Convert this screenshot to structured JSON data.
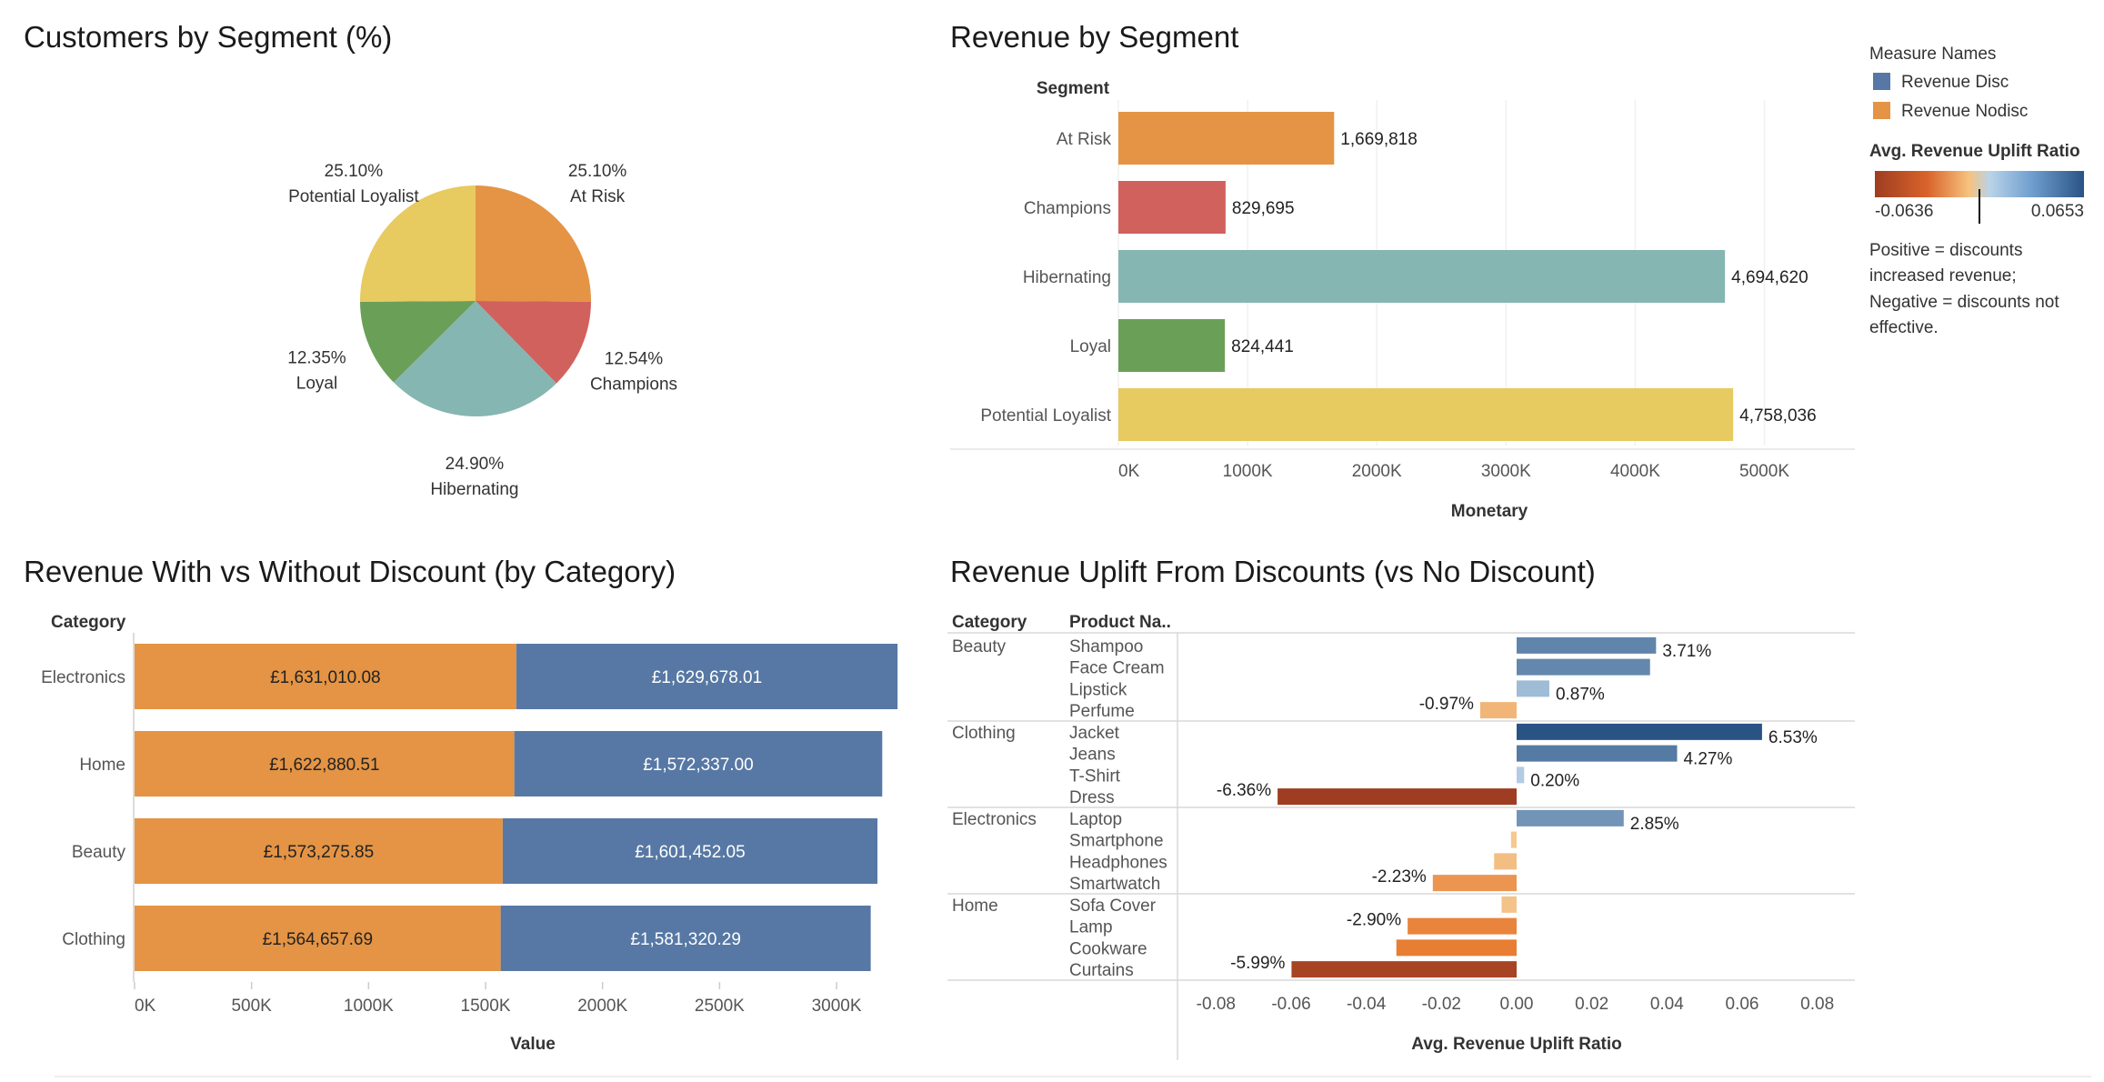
{
  "legend": {
    "measure_title": "Measure Names",
    "measures": [
      {
        "name": "Revenue Disc",
        "color": "#5778a4"
      },
      {
        "name": "Revenue Nodisc",
        "color": "#e49444"
      }
    ],
    "ratio_title": "Avg. Revenue Uplift Ratio",
    "ratio_min": "-0.0636",
    "ratio_max": "0.0653",
    "note_lines": [
      "Positive = discounts",
      "increased revenue;",
      "Negative = discounts not",
      "effective."
    ]
  },
  "chart_data": [
    {
      "type": "pie",
      "title": "Customers by Segment (%)",
      "slices": [
        {
          "label": "At Risk",
          "value": 25.1,
          "display": "25.10%",
          "color": "#e49444"
        },
        {
          "label": "Champions",
          "value": 12.54,
          "display": "12.54%",
          "color": "#d1615d"
        },
        {
          "label": "Hibernating",
          "value": 24.9,
          "display": "24.90%",
          "color": "#85b6b2"
        },
        {
          "label": "Loyal",
          "value": 12.35,
          "display": "12.35%",
          "color": "#6a9f58"
        },
        {
          "label": "Potential Loyalist",
          "value": 25.1,
          "display": "25.10%",
          "color": "#e7ca60"
        }
      ]
    },
    {
      "type": "bar",
      "title": "Revenue by Segment",
      "row_header": "Segment",
      "xlabel": "Monetary",
      "xlim": [
        0,
        5700000
      ],
      "ticks": [
        0,
        1000000,
        2000000,
        3000000,
        4000000,
        5000000
      ],
      "tick_labels": [
        "0K",
        "1000K",
        "2000K",
        "3000K",
        "4000K",
        "5000K"
      ],
      "categories": [
        "At Risk",
        "Champions",
        "Hibernating",
        "Loyal",
        "Potential Loyalist"
      ],
      "values": [
        1669818,
        829695,
        4694620,
        824441,
        4758036
      ],
      "value_labels": [
        "1,669,818",
        "829,695",
        "4,694,620",
        "824,441",
        "4,758,036"
      ],
      "colors": [
        "#e49444",
        "#d1615d",
        "#85b6b2",
        "#6a9f58",
        "#e7ca60"
      ]
    },
    {
      "type": "bar",
      "title": "Revenue With vs Without Discount (by Category)",
      "row_header": "Category",
      "xlabel": "Value",
      "stacked": true,
      "xlim": [
        0,
        3400000
      ],
      "ticks": [
        0,
        500000,
        1000000,
        1500000,
        2000000,
        2500000,
        3000000
      ],
      "tick_labels": [
        "0K",
        "500K",
        "1000K",
        "1500K",
        "2000K",
        "2500K",
        "3000K"
      ],
      "categories": [
        "Electronics",
        "Home",
        "Beauty",
        "Clothing"
      ],
      "series": [
        {
          "name": "Revenue Nodisc",
          "values": [
            1631010.08,
            1622880.51,
            1573275.85,
            1564657.69
          ],
          "labels": [
            "£1,631,010.08",
            "£1,622,880.51",
            "£1,573,275.85",
            "£1,564,657.69"
          ]
        },
        {
          "name": "Revenue Disc",
          "values": [
            1629678.01,
            1572337.0,
            1601452.05,
            1581320.29
          ],
          "labels": [
            "£1,629,678.01",
            "£1,572,337.00",
            "£1,601,452.05",
            "£1,581,320.29"
          ]
        }
      ]
    },
    {
      "type": "bar",
      "title": "Revenue Uplift From Discounts (vs No Discount)",
      "col_headers": [
        "Category",
        "Product Na.."
      ],
      "xlabel": "Avg. Revenue Uplift Ratio",
      "xlim": [
        -0.09,
        0.09
      ],
      "ticks": [
        -0.08,
        -0.06,
        -0.04,
        -0.02,
        0.0,
        0.02,
        0.04,
        0.06,
        0.08
      ],
      "tick_labels": [
        "-0.08",
        "-0.06",
        "-0.04",
        "-0.02",
        "0.00",
        "0.02",
        "0.04",
        "0.06",
        "0.08"
      ],
      "groups": [
        {
          "category": "Beauty",
          "products": [
            {
              "name": "Shampoo",
              "value": 0.0371,
              "label": "3.71%"
            },
            {
              "name": "Face Cream",
              "value": 0.0355,
              "label": ""
            },
            {
              "name": "Lipstick",
              "value": 0.0087,
              "label": "0.87%"
            },
            {
              "name": "Perfume",
              "value": -0.0097,
              "label": "-0.97%"
            }
          ]
        },
        {
          "category": "Clothing",
          "products": [
            {
              "name": "Jacket",
              "value": 0.0653,
              "label": "6.53%"
            },
            {
              "name": "Jeans",
              "value": 0.0427,
              "label": "4.27%"
            },
            {
              "name": "T-Shirt",
              "value": 0.002,
              "label": "0.20%"
            },
            {
              "name": "Dress",
              "value": -0.0636,
              "label": "-6.36%"
            }
          ]
        },
        {
          "category": "Electronics",
          "products": [
            {
              "name": "Laptop",
              "value": 0.0285,
              "label": "2.85%"
            },
            {
              "name": "Smartphone",
              "value": -0.0015,
              "label": ""
            },
            {
              "name": "Headphones",
              "value": -0.006,
              "label": ""
            },
            {
              "name": "Smartwatch",
              "value": -0.0223,
              "label": "-2.23%"
            }
          ]
        },
        {
          "category": "Home",
          "products": [
            {
              "name": "Sofa Cover",
              "value": -0.004,
              "label": ""
            },
            {
              "name": "Lamp",
              "value": -0.029,
              "label": "-2.90%"
            },
            {
              "name": "Cookware",
              "value": -0.032,
              "label": ""
            },
            {
              "name": "Curtains",
              "value": -0.0599,
              "label": "-5.99%"
            }
          ]
        }
      ]
    }
  ]
}
